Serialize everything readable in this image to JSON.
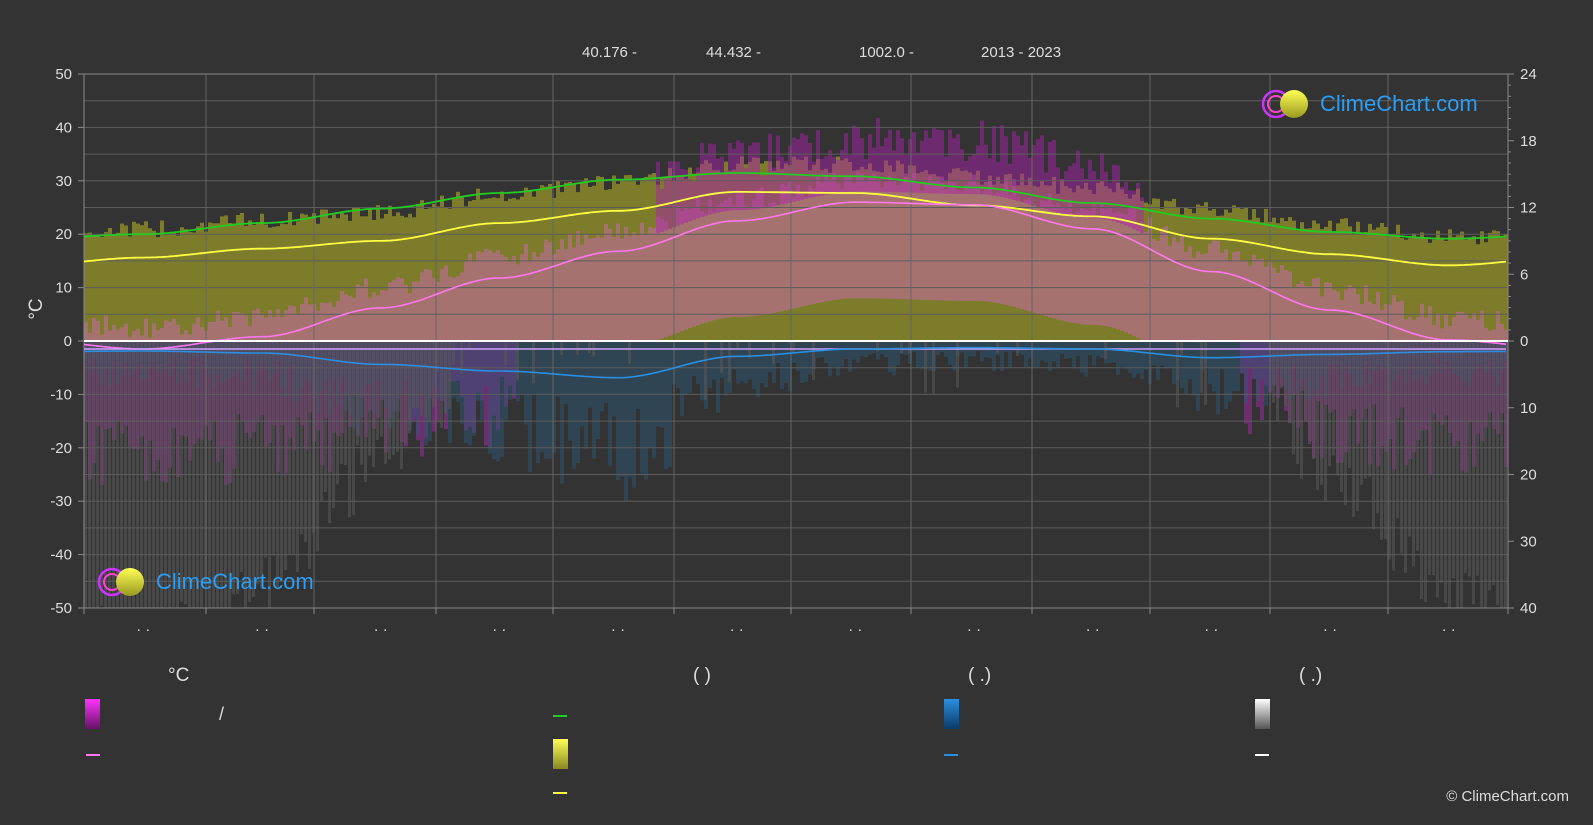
{
  "header": {
    "lat": "40.176 -",
    "lon": "44.432 -",
    "elevation": "1002.0 -",
    "years": "2013 - 2023"
  },
  "colors": {
    "background": "#333333",
    "daylight": "#22cc22",
    "sunshine": "#ffff44",
    "max_temp": "#ff77ee",
    "precip": "#2a8fe0",
    "snow": "#ffffff",
    "brand": "#2a9df4"
  },
  "chart_data": {
    "type": "line",
    "left_axis": {
      "label": "°C",
      "min": -50,
      "max": 50,
      "ticks": [
        50,
        40,
        30,
        20,
        10,
        0,
        -10,
        -20,
        -30,
        -40,
        -50
      ]
    },
    "right_axis_top": {
      "min": 0,
      "max": 24,
      "ticks": [
        24,
        18,
        12,
        6,
        0
      ]
    },
    "right_axis_bottom": {
      "min": 0,
      "max": 40,
      "ticks": [
        0,
        10,
        20,
        30,
        40
      ]
    },
    "month_labels": [
      "· ·",
      "· ·",
      "· ·",
      "· ·",
      "· ·",
      "· ·",
      "· ·",
      "· ·",
      "· ·",
      "· ·",
      "· ·",
      "· ·"
    ],
    "x": [
      0.5,
      1.5,
      2.5,
      3.5,
      4.5,
      5.5,
      6.5,
      7.5,
      8.5,
      9.5,
      10.5,
      11.5
    ],
    "series": [
      {
        "key": "daylight",
        "axis": "hours",
        "values": [
          9.6,
          10.6,
          11.9,
          13.3,
          14.5,
          15.1,
          14.8,
          13.8,
          12.4,
          11.0,
          9.8,
          9.2
        ]
      },
      {
        "key": "sunshine",
        "axis": "hours",
        "values": [
          7.5,
          8.3,
          9.0,
          10.6,
          11.7,
          13.4,
          13.3,
          12.2,
          11.2,
          9.2,
          7.8,
          6.8
        ]
      },
      {
        "key": "max_temp",
        "axis": "celsius",
        "values": [
          -1.5,
          0.8,
          6.2,
          11.8,
          16.8,
          22.5,
          26.0,
          25.5,
          21.0,
          13.0,
          5.8,
          0.2
        ]
      },
      {
        "key": "min_temp",
        "axis": "celsius",
        "values": [
          -1.5,
          -1.5,
          -1.5,
          -1.5,
          -1.5,
          -1.5,
          -1.5,
          -1.5,
          -1.5,
          -1.5,
          -1.5,
          -1.5
        ]
      },
      {
        "key": "precipitation",
        "axis": "mm",
        "values": [
          1.5,
          1.8,
          3.5,
          4.5,
          5.5,
          2.3,
          1.2,
          1.0,
          1.2,
          2.5,
          2.0,
          1.6
        ]
      }
    ]
  },
  "legend": {
    "col1_head": "°C",
    "col1_slash": "/",
    "col2_head": "(          )",
    "col3_head": "(   .)",
    "col4_head": "(   .)"
  },
  "logos": {
    "top_right": "ClimeChart.com",
    "bottom_left": "ClimeChart.com"
  },
  "copyright": "© ClimeChart.com"
}
